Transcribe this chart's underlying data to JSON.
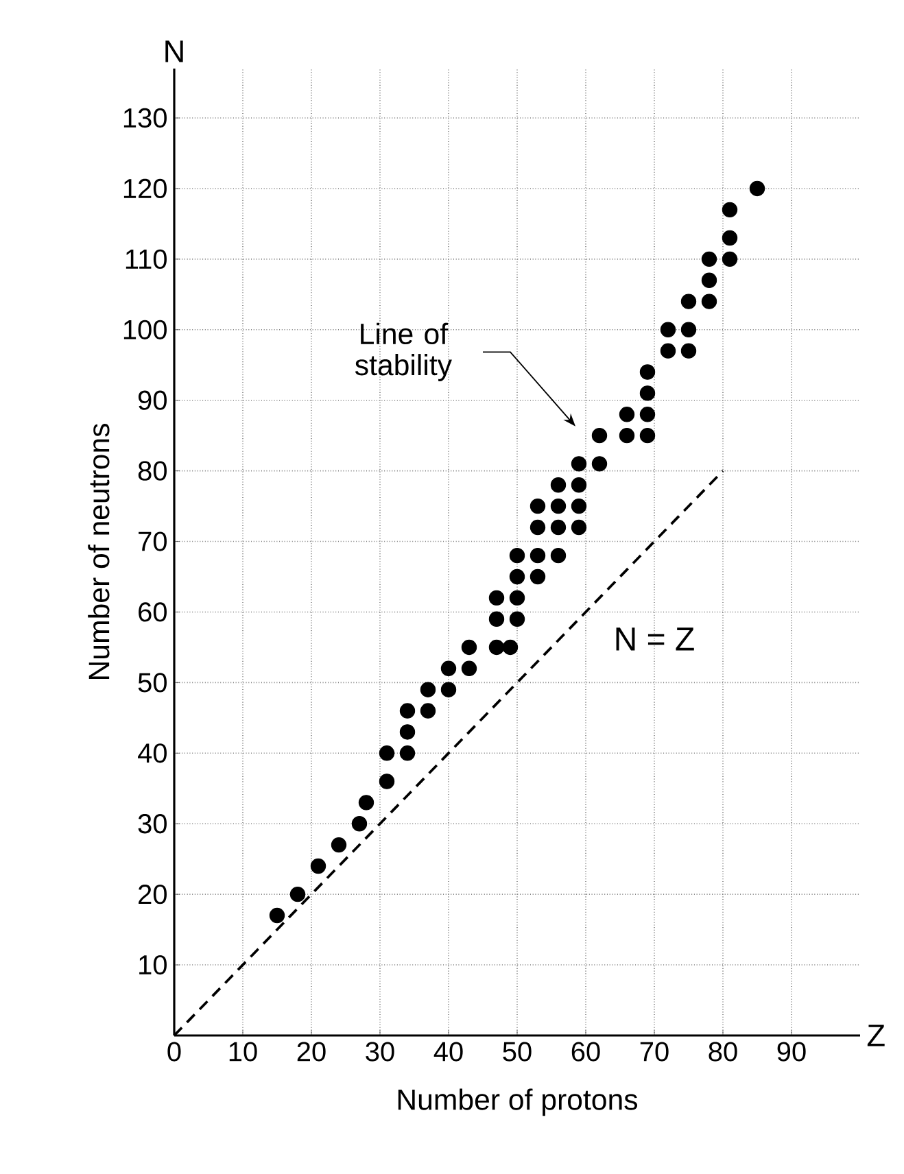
{
  "chart_data": {
    "type": "scatter",
    "xlabel": "Number of protons",
    "ylabel": "Number of neutrons",
    "xlim": [
      0,
      100
    ],
    "ylim": [
      0,
      137
    ],
    "xticks": [
      0,
      10,
      20,
      30,
      40,
      50,
      60,
      70,
      80,
      90
    ],
    "yticks": [
      10,
      20,
      30,
      40,
      50,
      60,
      70,
      80,
      90,
      100,
      110,
      120,
      130
    ],
    "grid": true,
    "series": [
      {
        "color": "#000000",
        "x": [
          15,
          18,
          21,
          24,
          27,
          28,
          31,
          31,
          34,
          34,
          34,
          37,
          37,
          40,
          40,
          43,
          43,
          47,
          49,
          47,
          50,
          47,
          50,
          50,
          53,
          50,
          53,
          56,
          53,
          56,
          59,
          53,
          56,
          59,
          56,
          59,
          59,
          62,
          62,
          66,
          69,
          66,
          69,
          69,
          69,
          72,
          75,
          72,
          75,
          75,
          78,
          78,
          78,
          81,
          81,
          81,
          85
        ],
        "values": [
          17,
          20,
          24,
          27,
          30,
          33,
          36,
          40,
          40,
          43,
          46,
          46,
          49,
          49,
          52,
          52,
          55,
          55,
          55,
          59,
          59,
          62,
          62,
          65,
          65,
          68,
          68,
          68,
          72,
          72,
          72,
          75,
          75,
          75,
          78,
          78,
          81,
          81,
          85,
          85,
          85,
          88,
          88,
          91,
          94,
          97,
          97,
          100,
          100,
          104,
          104,
          107,
          110,
          110,
          113,
          117,
          120
        ]
      },
      {
        "type": "line",
        "color": "#000000",
        "line_style": "dashed",
        "x": [
          0,
          80
        ],
        "values": [
          0,
          80
        ]
      }
    ],
    "annotations": [
      "Line of stability",
      "N = Z",
      "N",
      "Z"
    ]
  }
}
